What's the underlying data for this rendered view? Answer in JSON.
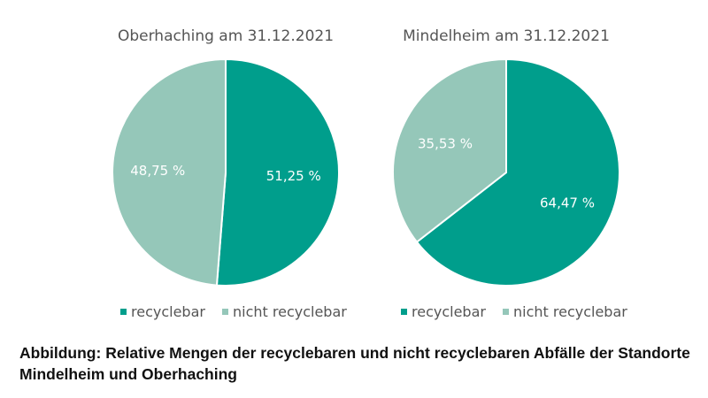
{
  "colors": {
    "recyclebar": "#009e8c",
    "nicht_recyclebar": "#95c7b9"
  },
  "chart_data": [
    {
      "type": "pie",
      "title": "Oberhaching am 31.12.2021",
      "categories": [
        "recyclebar",
        "nicht recyclebar"
      ],
      "values": [
        51.25,
        48.75
      ],
      "labels": [
        "51,25 %",
        "48,75 %"
      ],
      "legend": [
        "recyclebar",
        "nicht recyclebar"
      ],
      "legend_position": "bottom"
    },
    {
      "type": "pie",
      "title": "Mindelheim am 31.12.2021",
      "categories": [
        "recyclebar",
        "nicht recyclebar"
      ],
      "values": [
        64.47,
        35.53
      ],
      "labels": [
        "64,47 %",
        "35,53 %"
      ],
      "legend": [
        "recyclebar",
        "nicht recyclebar"
      ],
      "legend_position": "bottom"
    }
  ],
  "caption": "Abbildung: Relative Mengen der recyclebaren und nicht recyclebaren Abfälle der Standorte Mindelheim und Oberhaching"
}
